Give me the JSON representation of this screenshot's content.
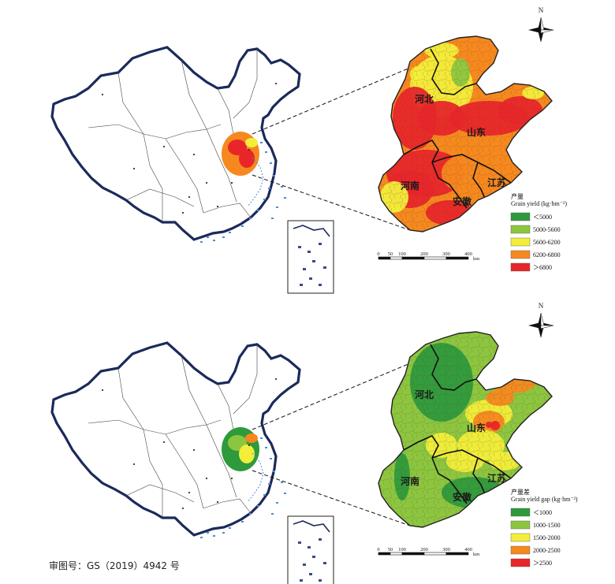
{
  "approval_number": "审图号：GS（2019）4942 号",
  "north_label": "N",
  "scale_unit": "km",
  "scale_ticks": [
    "0",
    "50",
    "100",
    "200",
    "300",
    "400"
  ],
  "colors": {
    "c1": "#2e9a3c",
    "c2": "#8cc63f",
    "c3": "#f2ee3a",
    "c4": "#f5891f",
    "c5": "#e8262a",
    "border": "#1b2a5a",
    "sea": "#4b8ed1"
  },
  "panels": [
    {
      "id": "yield",
      "provinces": [
        "河北",
        "山东",
        "河南",
        "江苏",
        "安徽"
      ],
      "legend": {
        "title_cn": "产量",
        "title_en": "Grain yield (kg·hm⁻²)",
        "items": [
          "＜5000",
          "5000-5600",
          "5600-6200",
          "6200-6800",
          "＞6800"
        ]
      }
    },
    {
      "id": "gap",
      "provinces": [
        "河北",
        "山东",
        "河南",
        "江苏",
        "安徽"
      ],
      "legend": {
        "title_cn": "产量差",
        "title_en": "Grain yield gap (kg·hm⁻²)",
        "items": [
          "＜1000",
          "1000-1500",
          "1500-2000",
          "2000-2500",
          "＞2500"
        ]
      }
    }
  ]
}
